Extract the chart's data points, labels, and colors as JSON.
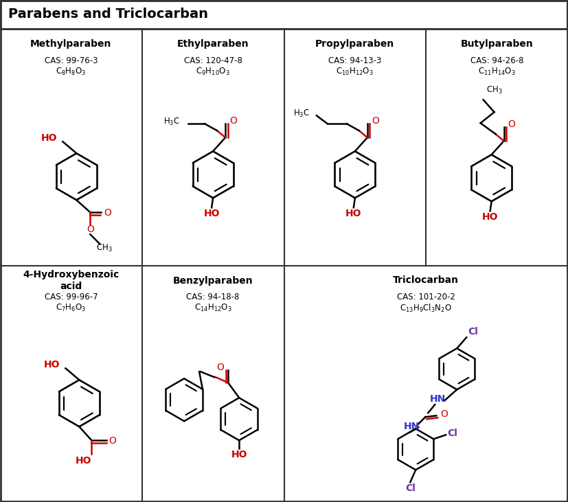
{
  "title": "Parabens and Triclocarban",
  "background": "#ffffff",
  "border_color": "#333333",
  "title_fontsize": 14,
  "header_fontsize": 10,
  "label_fontsize": 8.5,
  "red": "#cc0000",
  "blue": "#3333cc",
  "purple": "#7030a0",
  "black": "#000000",
  "compounds": [
    {
      "name": "Methylparaben",
      "cas": "CAS: 99-76-3",
      "formula": [
        "C",
        "8",
        "H",
        "8",
        "O",
        "3"
      ],
      "row": 0,
      "col": 0,
      "colspan": 1
    },
    {
      "name": "Ethylparaben",
      "cas": "CAS: 120-47-8",
      "formula": [
        "C",
        "9",
        "H",
        "10",
        "O",
        "3"
      ],
      "row": 0,
      "col": 1,
      "colspan": 1
    },
    {
      "name": "Propylparaben",
      "cas": "CAS: 94-13-3",
      "formula": [
        "C",
        "10",
        "H",
        "12",
        "O",
        "3"
      ],
      "row": 0,
      "col": 2,
      "colspan": 1
    },
    {
      "name": "Butylparaben",
      "cas": "CAS: 94-26-8",
      "formula": [
        "C",
        "11",
        "H",
        "14",
        "O",
        "3"
      ],
      "row": 0,
      "col": 3,
      "colspan": 1
    },
    {
      "name": "4-Hydroxybenzoic\nacid",
      "cas": "CAS: 99-96-7",
      "formula": [
        "C",
        "7",
        "H",
        "6",
        "O",
        "3"
      ],
      "row": 1,
      "col": 0,
      "colspan": 1
    },
    {
      "name": "Benzylparaben",
      "cas": "CAS: 94-18-8",
      "formula": [
        "C",
        "14",
        "H",
        "12",
        "O",
        "3"
      ],
      "row": 1,
      "col": 1,
      "colspan": 1
    },
    {
      "name": "Triclocarban",
      "cas": "CAS: 101-20-2",
      "formula": [
        "C",
        "13",
        "H",
        "9",
        "Cl",
        "3",
        "N",
        "2",
        "O",
        ""
      ],
      "row": 1,
      "col": 2,
      "colspan": 2
    }
  ]
}
